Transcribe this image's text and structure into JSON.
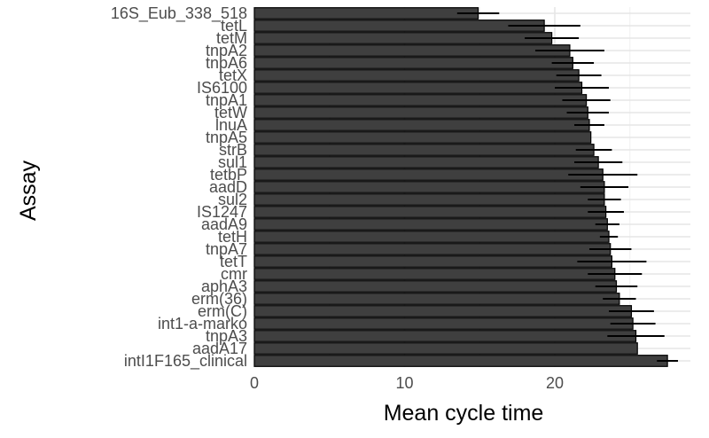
{
  "chart_data": {
    "type": "bar",
    "orientation": "horizontal",
    "xlabel": "Mean cycle time",
    "ylabel": "Assay",
    "xlim": [
      0,
      29
    ],
    "x_ticks": [
      0,
      10,
      20
    ],
    "grid": true,
    "bar_color": "#3f3f3f",
    "bar_edge_color": "#000000",
    "errorbar_color": "#000000",
    "categories": [
      "16S_Eub_338_518",
      "tetL",
      "tetM",
      "tnpA2",
      "tnpA6",
      "tetX",
      "IS6100",
      "tnpA1",
      "tetW",
      "lnuA",
      "tnpA5",
      "strB",
      "sul1",
      "tetbP",
      "aadD",
      "sul2",
      "IS1247",
      "aadA9",
      "tetH",
      "tnpA7",
      "tetT",
      "cmr",
      "aphA3",
      "erm(36)",
      "erm(C)",
      "int1-a-marko",
      "tnpA3",
      "aadA17",
      "intI1F165_clinical"
    ],
    "values": [
      14.9,
      19.3,
      19.8,
      21.0,
      21.2,
      21.6,
      21.8,
      22.1,
      22.2,
      22.3,
      22.4,
      22.6,
      22.9,
      23.2,
      23.3,
      23.3,
      23.4,
      23.5,
      23.6,
      23.7,
      23.8,
      24.0,
      24.1,
      24.3,
      25.1,
      25.2,
      25.4,
      25.5,
      27.5
    ],
    "errors": [
      1.4,
      2.4,
      1.8,
      2.3,
      1.4,
      1.5,
      1.8,
      1.6,
      1.4,
      1.0,
      0.0,
      1.2,
      1.6,
      2.3,
      1.6,
      1.1,
      1.2,
      0.8,
      0.6,
      1.4,
      2.3,
      1.8,
      1.4,
      1.1,
      1.5,
      1.5,
      1.9,
      0.0,
      0.7
    ]
  }
}
